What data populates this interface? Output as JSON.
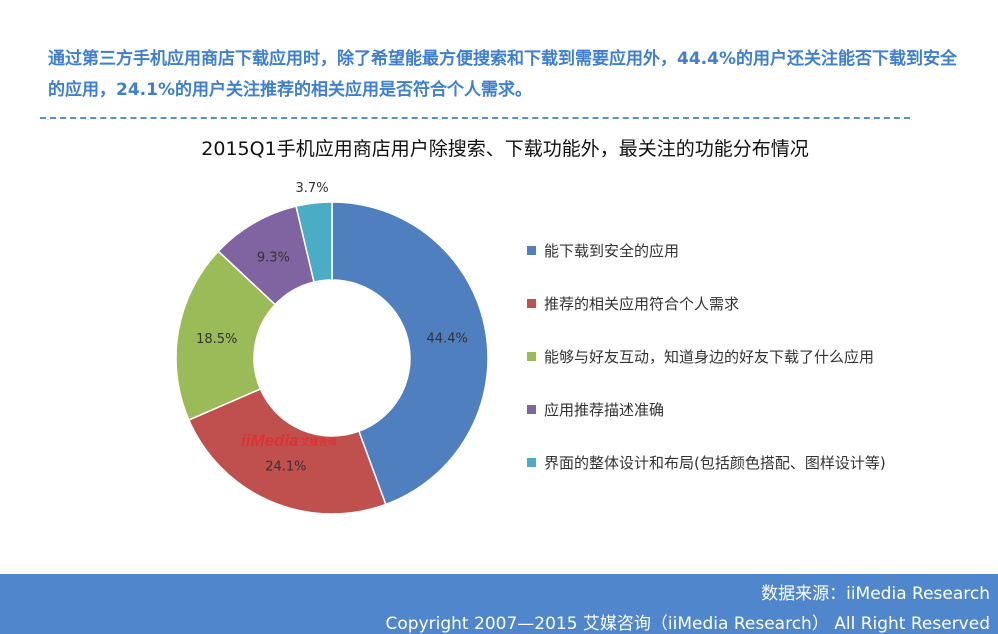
{
  "headline": "通过第三方手机应用商店下载应用时，除了希望能最方便搜索和下载到需要应用外，44.4%的用户还关注能否下载到安全的应用，24.1%的用户关注推荐的相关应用是否符合个人需求。",
  "watermark": {
    "brand": "iiMedia",
    "sub": "艾媒咨询"
  },
  "footer": {
    "source": "数据来源：iiMedia Research",
    "copyright": "Copyright 2007—2015 艾媒咨询（iiMedia Research） All Right Reserved"
  },
  "colors": {
    "headline": "#3f7fd0",
    "footer_bg": "#4f86cc"
  },
  "chart_data": {
    "type": "pie",
    "variant": "donut",
    "title": "2015Q1手机应用商店用户除搜索、下载功能外，最关注的功能分布情况",
    "unit": "%",
    "legend_position": "right",
    "slices": [
      {
        "label": "能下载到安全的应用",
        "value": 44.4,
        "value_label": "44.4%",
        "color": "#4f7fbf"
      },
      {
        "label": "推荐的相关应用符合个人需求",
        "value": 24.1,
        "value_label": "24.1%",
        "color": "#c0504d"
      },
      {
        "label": "能够与好友互动，知道身边的好友下载了什么应用",
        "value": 18.5,
        "value_label": "18.5%",
        "color": "#9bbb59"
      },
      {
        "label": "应用推荐描述准确",
        "value": 9.3,
        "value_label": "9.3%",
        "color": "#8064a2"
      },
      {
        "label": "界面的整体设计和布局(包括颜色搭配、图样设计等)",
        "value": 3.7,
        "value_label": "3.7%",
        "color": "#4bacc6"
      }
    ]
  }
}
